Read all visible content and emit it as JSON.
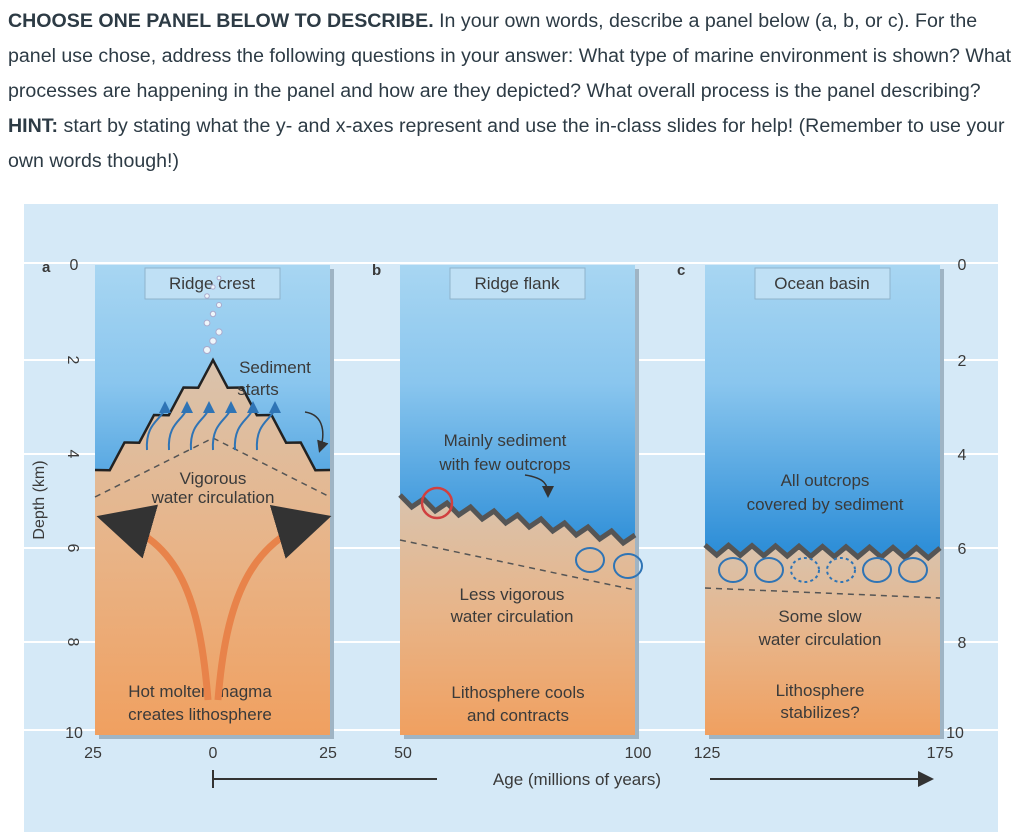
{
  "question": {
    "lead_bold": "CHOOSE ONE PANEL BELOW TO DESCRIBE.",
    "body": " In your own words, describe a panel below (a, b, or c). For the panel use chose, address the following questions in your answer: What type of marine environment is shown? What processes are happening in the panel and how are they depicted? What overall process is the panel describing? ",
    "hint_bold": "HINT:",
    "hint_text": " start by stating what the y- and x-axes represent and use the in-class slides for help! (Remember to use your own words though!)"
  },
  "figure": {
    "y_axis_label": "Depth (km)",
    "depth_ticks": [
      "0",
      "2",
      "4",
      "6",
      "8",
      "10"
    ],
    "x_axis_label": "Age (millions of years)",
    "age_ticks": [
      "25",
      "0",
      "25",
      "50",
      "100",
      "125",
      "175"
    ],
    "panels": [
      {
        "letter": "a",
        "title": "Ridge crest",
        "labels": [
          "Sediment",
          "starts",
          "Vigorous",
          "water circulation",
          "Hot molten magma",
          "creates lithosphere"
        ]
      },
      {
        "letter": "b",
        "title": "Ridge flank",
        "labels": [
          "Mainly sediment",
          "with few outcrops",
          "Less vigorous",
          "water circulation",
          "Lithosphere cools",
          "and contracts"
        ]
      },
      {
        "letter": "c",
        "title": "Ocean basin",
        "labels": [
          "All outcrops",
          "covered by sediment",
          "Some slow",
          "water circulation",
          "Lithosphere",
          "stabilizes?"
        ]
      }
    ],
    "colors": {
      "background": "#d5e9f7",
      "water_top": "#a8d6f2",
      "water_bottom": "#2f8fd8",
      "crust": "#d9c3ad",
      "mantle": "#f0a060",
      "sediment": "#6e6660",
      "circulation": "#2f74b5",
      "magma_arrow": "#e8834a"
    }
  }
}
